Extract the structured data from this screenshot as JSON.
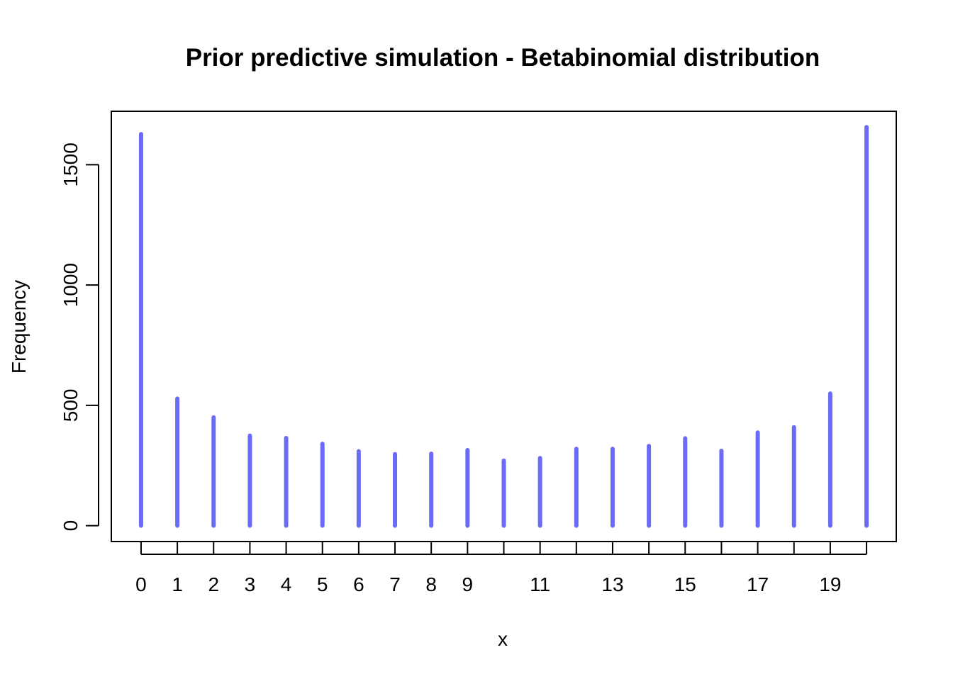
{
  "chart_data": {
    "type": "bar",
    "title": "Prior predictive simulation - Betabinomial distribution",
    "xlabel": "x",
    "ylabel": "Frequency",
    "x": [
      0,
      1,
      2,
      3,
      4,
      5,
      6,
      7,
      8,
      9,
      10,
      11,
      12,
      13,
      14,
      15,
      16,
      17,
      18,
      19,
      20
    ],
    "values": [
      1627,
      528,
      450,
      374,
      364,
      340,
      309,
      297,
      299,
      314,
      270,
      281,
      319,
      319,
      331,
      363,
      311,
      387,
      409,
      549,
      1656
    ],
    "x_tick_labels": [
      "0",
      "1",
      "2",
      "3",
      "4",
      "5",
      "6",
      "7",
      "8",
      "9",
      "",
      "11",
      "",
      "13",
      "",
      "15",
      "",
      "17",
      "",
      "19",
      ""
    ],
    "y_ticks": [
      0,
      500,
      1000,
      1500
    ],
    "y_tick_labels": [
      "0",
      "500",
      "1000",
      "1500"
    ],
    "xlim": [
      -0.82,
      20.82
    ],
    "ylim": [
      -66,
      1722
    ],
    "grid": false,
    "bar_color": "#6b6bf5"
  }
}
